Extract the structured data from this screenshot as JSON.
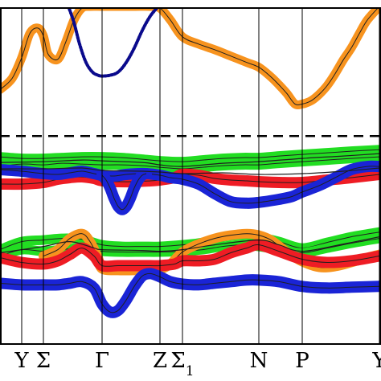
{
  "chart_data": {
    "type": "line",
    "title": "",
    "xlabel": "",
    "ylabel": "",
    "x_ticks": [
      {
        "main": "Y",
        "sub": ""
      },
      {
        "main": "Σ",
        "sub": ""
      },
      {
        "main": "Γ",
        "sub": ""
      },
      {
        "main": "Z",
        "sub": ""
      },
      {
        "main": "Σ",
        "sub": "1"
      },
      {
        "main": "N",
        "sub": ""
      },
      {
        "main": "P",
        "sub": ""
      },
      {
        "main": "Y",
        "sub": ""
      }
    ],
    "x_tick_positions": [
      0.0,
      0.27,
      1.0,
      1.72,
      2.0,
      2.95,
      3.49,
      4.45
    ],
    "xlim": [
      -0.27,
      4.47
    ],
    "ylim": [
      -2.6,
      1.6
    ],
    "fermi_level": 0.0,
    "grid": false,
    "legend": "none",
    "colors": {
      "orange": "#f7931e",
      "red": "#ee1c24",
      "green": "#22dd22",
      "blue": "#1a24d6",
      "navy": "#0a0a8c",
      "line": "#1f1f1f"
    },
    "series": [
      {
        "color": "orange",
        "width": 11,
        "x": [
          -0.27,
          -0.12,
          0.0,
          0.1,
          0.2,
          0.27,
          0.33,
          0.45,
          0.55,
          0.65,
          0.75,
          0.85,
          1.0,
          1.2,
          1.4,
          1.6,
          1.72,
          1.85,
          2.0,
          2.2,
          2.4,
          2.6,
          2.8,
          2.95,
          3.1,
          3.2,
          3.3,
          3.4,
          3.49,
          3.6,
          3.7,
          3.8,
          3.9,
          4.0,
          4.1,
          4.2,
          4.3,
          4.45
        ],
        "y": [
          0.58,
          0.72,
          0.98,
          1.28,
          1.35,
          1.25,
          1.02,
          0.96,
          1.18,
          1.45,
          1.6,
          1.62,
          1.62,
          1.62,
          1.62,
          1.62,
          1.6,
          1.45,
          1.24,
          1.15,
          1.08,
          1.0,
          0.92,
          0.86,
          0.74,
          0.64,
          0.53,
          0.4,
          0.4,
          0.44,
          0.52,
          0.63,
          0.78,
          0.95,
          1.1,
          1.28,
          1.45,
          1.62
        ]
      },
      {
        "color": "navy",
        "width": 4,
        "x": [
          0.58,
          0.65,
          0.72,
          0.8,
          0.88,
          0.95,
          1.0,
          1.1,
          1.2,
          1.3,
          1.4,
          1.5,
          1.6,
          1.7
        ],
        "y": [
          1.62,
          1.42,
          1.15,
          0.92,
          0.8,
          0.76,
          0.75,
          0.76,
          0.8,
          0.92,
          1.1,
          1.32,
          1.5,
          1.62
        ]
      },
      {
        "color": "green",
        "width": 12,
        "x": [
          -0.27,
          0.0,
          0.27,
          0.5,
          0.75,
          1.0,
          1.25,
          1.5,
          1.72,
          2.0,
          2.25,
          2.5,
          2.75,
          2.95,
          3.2,
          3.49,
          3.8,
          4.1,
          4.45
        ],
        "y": [
          -0.26,
          -0.28,
          -0.28,
          -0.27,
          -0.26,
          -0.26,
          -0.27,
          -0.29,
          -0.31,
          -0.32,
          -0.3,
          -0.28,
          -0.27,
          -0.27,
          -0.25,
          -0.23,
          -0.21,
          -0.19,
          -0.17
        ]
      },
      {
        "color": "green",
        "width": 12,
        "x": [
          -0.27,
          0.0,
          0.27,
          0.5,
          0.75,
          1.0,
          1.25,
          1.5,
          1.72,
          2.0,
          2.25,
          2.5,
          2.75,
          2.95,
          3.2,
          3.49,
          3.8,
          4.1,
          4.45
        ],
        "y": [
          -0.38,
          -0.35,
          -0.36,
          -0.34,
          -0.35,
          -0.36,
          -0.36,
          -0.37,
          -0.39,
          -0.41,
          -0.39,
          -0.37,
          -0.36,
          -0.36,
          -0.34,
          -0.32,
          -0.3,
          -0.28,
          -0.26
        ]
      },
      {
        "color": "red",
        "width": 14,
        "x": [
          -0.27,
          0.0,
          0.27,
          0.45,
          0.6,
          0.75,
          0.9,
          1.0,
          1.2,
          1.4,
          1.6,
          1.72,
          1.9,
          2.0,
          2.2,
          2.4,
          2.6,
          2.8,
          2.95,
          3.2,
          3.49,
          3.8,
          4.1,
          4.45
        ],
        "y": [
          -0.6,
          -0.6,
          -0.58,
          -0.54,
          -0.52,
          -0.51,
          -0.53,
          -0.56,
          -0.57,
          -0.57,
          -0.56,
          -0.55,
          -0.52,
          -0.48,
          -0.49,
          -0.53,
          -0.55,
          -0.56,
          -0.57,
          -0.58,
          -0.58,
          -0.55,
          -0.52,
          -0.48
        ]
      },
      {
        "color": "blue",
        "width": 14,
        "x": [
          -0.27,
          0.0,
          0.27,
          0.45,
          0.6,
          0.75,
          0.9,
          1.0,
          1.15,
          1.3,
          1.45,
          1.55,
          1.72,
          1.85,
          2.0,
          2.2,
          2.4,
          2.6,
          2.8,
          2.95,
          3.15,
          3.35,
          3.49,
          3.7,
          3.9,
          4.1,
          4.3,
          4.45
        ],
        "y": [
          -0.42,
          -0.44,
          -0.47,
          -0.48,
          -0.46,
          -0.44,
          -0.47,
          -0.49,
          -0.5,
          -0.48,
          -0.47,
          -0.47,
          -0.49,
          -0.52,
          -0.54,
          -0.6,
          -0.72,
          -0.82,
          -0.84,
          -0.83,
          -0.8,
          -0.76,
          -0.7,
          -0.62,
          -0.52,
          -0.42,
          -0.38,
          -0.38
        ]
      },
      {
        "color": "blue",
        "width": 14,
        "x": [
          1.0,
          1.05,
          1.1,
          1.15,
          1.2,
          1.25,
          1.3,
          1.35,
          1.4,
          1.45,
          1.5,
          1.55
        ],
        "y": [
          -0.49,
          -0.55,
          -0.65,
          -0.78,
          -0.88,
          -0.92,
          -0.88,
          -0.78,
          -0.65,
          -0.55,
          -0.49,
          -0.47
        ]
      },
      {
        "color": "line",
        "width": 1.2,
        "x": [
          -0.27,
          0.27,
          0.75,
          1.0,
          1.5,
          1.72,
          2.0,
          2.5,
          2.95,
          3.49,
          4.0,
          4.45
        ],
        "y": [
          -0.33,
          -0.32,
          -0.3,
          -0.31,
          -0.33,
          -0.36,
          -0.38,
          -0.34,
          -0.32,
          -0.28,
          -0.25,
          -0.22
        ]
      },
      {
        "color": "line",
        "width": 1.2,
        "x": [
          -0.27,
          0.27,
          0.75,
          1.0,
          1.5,
          1.72,
          2.0,
          2.5,
          2.95,
          3.49,
          4.0,
          4.45
        ],
        "y": [
          -0.41,
          -0.41,
          -0.4,
          -0.43,
          -0.44,
          -0.45,
          -0.47,
          -0.46,
          -0.48,
          -0.47,
          -0.44,
          -0.4
        ]
      },
      {
        "color": "green",
        "width": 12,
        "x": [
          -0.27,
          0.0,
          0.27,
          0.5,
          0.75,
          1.0,
          1.25,
          1.5,
          1.72,
          2.0,
          2.25,
          2.5,
          2.75,
          2.95,
          3.2,
          3.49,
          3.8,
          4.1,
          4.45
        ],
        "y": [
          -1.42,
          -1.32,
          -1.3,
          -1.28,
          -1.29,
          -1.36,
          -1.38,
          -1.38,
          -1.38,
          -1.36,
          -1.33,
          -1.26,
          -1.24,
          -1.26,
          -1.32,
          -1.4,
          -1.33,
          -1.26,
          -1.2
        ]
      },
      {
        "color": "green",
        "width": 12,
        "x": [
          -0.27,
          0.0,
          0.27,
          0.5,
          0.75,
          1.0,
          1.25,
          1.5,
          1.72,
          2.0,
          2.25,
          2.5,
          2.75,
          2.95,
          3.2,
          3.49,
          3.8,
          4.1,
          4.45
        ],
        "y": [
          -1.5,
          -1.42,
          -1.44,
          -1.42,
          -1.4,
          -1.44,
          -1.45,
          -1.45,
          -1.45,
          -1.44,
          -1.42,
          -1.38,
          -1.36,
          -1.38,
          -1.42,
          -1.46,
          -1.4,
          -1.34,
          -1.28
        ]
      },
      {
        "color": "orange",
        "width": 12,
        "x": [
          0.27,
          0.45,
          0.6,
          0.75,
          0.85,
          0.95,
          1.0,
          1.2,
          1.4,
          1.6,
          1.72,
          1.85,
          2.0,
          2.2,
          2.4,
          2.6,
          2.8,
          2.95,
          3.1,
          3.3,
          3.49,
          3.7,
          3.9,
          4.1,
          4.3,
          4.45
        ],
        "y": [
          -1.5,
          -1.42,
          -1.28,
          -1.22,
          -1.32,
          -1.52,
          -1.66,
          -1.68,
          -1.68,
          -1.68,
          -1.67,
          -1.6,
          -1.45,
          -1.35,
          -1.28,
          -1.24,
          -1.22,
          -1.24,
          -1.3,
          -1.45,
          -1.57,
          -1.64,
          -1.63,
          -1.58,
          -1.52,
          -1.48
        ]
      },
      {
        "color": "red",
        "width": 14,
        "x": [
          -0.27,
          0.0,
          0.27,
          0.45,
          0.6,
          0.75,
          0.9,
          1.0,
          1.2,
          1.4,
          1.6,
          1.72,
          1.9,
          2.0,
          2.2,
          2.4,
          2.6,
          2.8,
          2.95,
          3.2,
          3.49,
          3.8,
          4.1,
          4.45
        ],
        "y": [
          -1.52,
          -1.58,
          -1.6,
          -1.56,
          -1.48,
          -1.4,
          -1.5,
          -1.62,
          -1.62,
          -1.62,
          -1.62,
          -1.62,
          -1.6,
          -1.56,
          -1.56,
          -1.54,
          -1.46,
          -1.4,
          -1.36,
          -1.44,
          -1.54,
          -1.58,
          -1.56,
          -1.5
        ]
      },
      {
        "color": "blue",
        "width": 14,
        "x": [
          -0.27,
          0.0,
          0.27,
          0.45,
          0.6,
          0.75,
          0.9,
          1.0,
          1.1,
          1.2,
          1.3,
          1.4,
          1.5,
          1.6,
          1.72,
          1.85,
          2.0,
          2.2,
          2.4,
          2.6,
          2.8,
          2.95,
          3.2,
          3.49,
          3.8,
          4.1,
          4.45
        ],
        "y": [
          -1.84,
          -1.86,
          -1.86,
          -1.86,
          -1.84,
          -1.82,
          -1.9,
          -2.1,
          -2.2,
          -2.18,
          -2.05,
          -1.88,
          -1.75,
          -1.72,
          -1.76,
          -1.82,
          -1.85,
          -1.86,
          -1.84,
          -1.82,
          -1.8,
          -1.8,
          -1.82,
          -1.88,
          -1.9,
          -1.89,
          -1.88
        ]
      },
      {
        "color": "line",
        "width": 1.2,
        "x": [
          -0.27,
          0.27,
          0.6,
          0.9,
          1.0,
          1.5,
          1.72,
          2.0,
          2.4,
          2.95,
          3.2,
          3.49,
          4.0,
          4.45
        ],
        "y": [
          -1.46,
          -1.38,
          -1.32,
          -1.4,
          -1.42,
          -1.43,
          -1.44,
          -1.42,
          -1.36,
          -1.3,
          -1.36,
          -1.44,
          -1.35,
          -1.26
        ]
      }
    ]
  }
}
